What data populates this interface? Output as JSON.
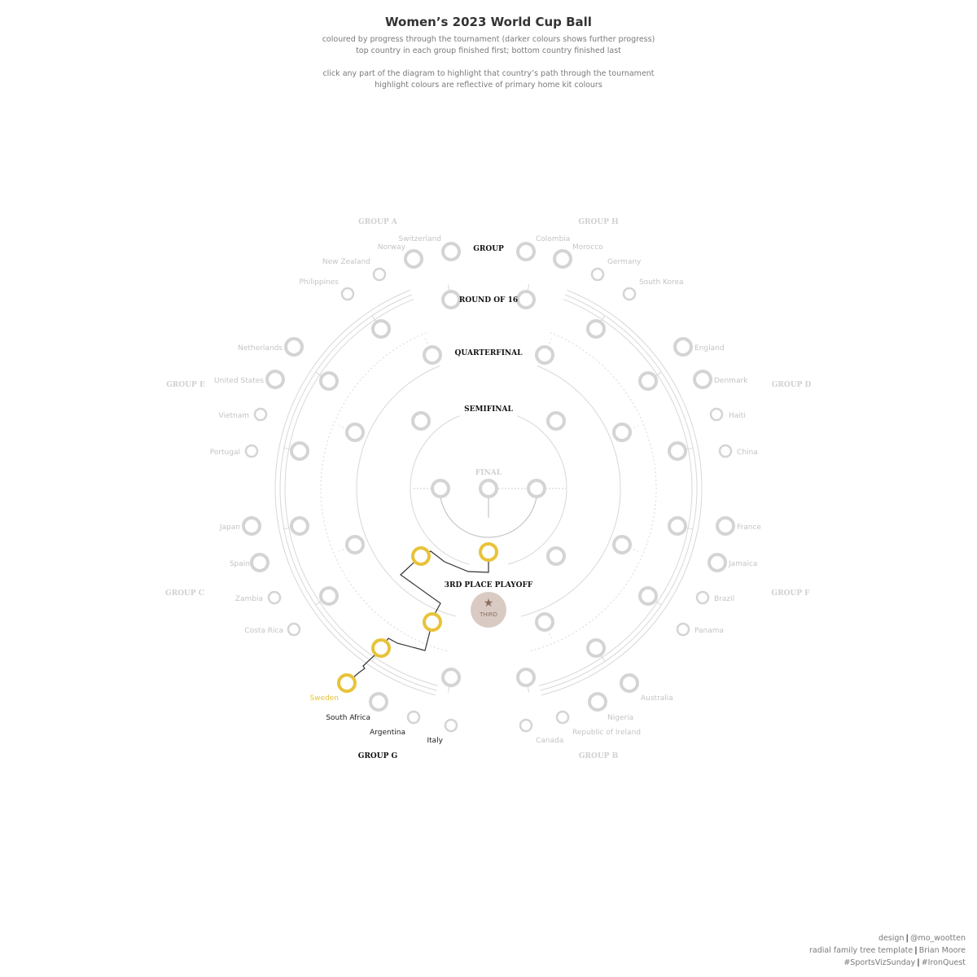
{
  "header": {
    "title": "Women’s 2023 World Cup Ball",
    "subtitle_lines": [
      "coloured by progress through the tournament (darker colours shows further progress)",
      "top country in each group finished first; bottom country finished last",
      "click any part of the diagram to highlight that country’s path through the tournament",
      "highlight colours are reflective of primary home kit colours"
    ]
  },
  "rounds": {
    "group": "GROUP",
    "round_of_16": "ROUND OF 16",
    "quarterfinal": "QUARTERFINAL",
    "semifinal": "SEMIFINAL",
    "final": "FINAL",
    "third_place": "3RD PLACE PLAYOFF",
    "third_badge": "THIRD"
  },
  "groups": [
    {
      "label": "GROUP A",
      "teams": [
        "Switzerland",
        "Norway",
        "New Zealand",
        "Philippines"
      ]
    },
    {
      "label": "GROUP H",
      "teams": [
        "Colombia",
        "Morocco",
        "Germany",
        "South Korea"
      ]
    },
    {
      "label": "GROUP E",
      "teams": [
        "Netherlands",
        "United States",
        "Vietnam",
        "Portugal"
      ]
    },
    {
      "label": "GROUP D",
      "teams": [
        "England",
        "Denmark",
        "Haiti",
        "China"
      ]
    },
    {
      "label": "GROUP C",
      "teams": [
        "Japan",
        "Spain",
        "Zambia",
        "Costa Rica"
      ]
    },
    {
      "label": "GROUP F",
      "teams": [
        "France",
        "Jamaica",
        "Brazil",
        "Panama"
      ]
    },
    {
      "label": "GROUP G",
      "teams": [
        "Sweden",
        "South Africa",
        "Argentina",
        "Italy"
      ]
    },
    {
      "label": "GROUP B",
      "teams": [
        "Australia",
        "Nigeria",
        "Republic of Ireland",
        "Canada"
      ]
    }
  ],
  "highlight": {
    "team": "Sweden",
    "group": "GROUP G",
    "color": "#e8c339",
    "path": [
      "Group winner",
      "Round of 16",
      "Quarterfinal",
      "Semifinal",
      "3rd place playoff"
    ],
    "result": "THIRD"
  },
  "colors": {
    "highlight": "#e8c339",
    "inactive_node": "#d4d4d4",
    "inactive_text": "#c4c4c4",
    "tree_lines": "#d8d8d8",
    "path_line": "#333333",
    "third_badge_fill": "#d9cbc3",
    "third_badge_star": "#8c6d5e"
  },
  "credits": {
    "line1": {
      "a": "design",
      "b": "@mo_wootten"
    },
    "line2": {
      "a": "radial family tree template",
      "b": "Brian Moore"
    },
    "line3": {
      "a": "#SportsVizSunday",
      "b": "#IronQuest"
    }
  },
  "icons": {
    "third_badge": "star-icon"
  }
}
